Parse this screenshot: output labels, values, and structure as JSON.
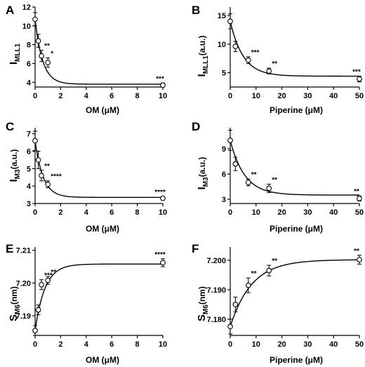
{
  "chart_data": [
    {
      "panel": "A",
      "type": "scatter",
      "ylabel_main": "I",
      "ylabel_sub": "MLL1",
      "ylabel_tail": "",
      "xlabel": "OM (μM)",
      "xlim": [
        0,
        10
      ],
      "ylim": [
        3.5,
        12
      ],
      "xticks": [
        0,
        2,
        4,
        6,
        8,
        10
      ],
      "yticks": [
        4,
        6,
        8,
        10,
        12
      ],
      "points": [
        {
          "x": 0,
          "y": 10.7,
          "err": 0.7,
          "sig": ""
        },
        {
          "x": 0.25,
          "y": 8.4,
          "err": 0.7,
          "sig": ""
        },
        {
          "x": 0.5,
          "y": 6.8,
          "err": 0.6,
          "sig": "**"
        },
        {
          "x": 1,
          "y": 6.1,
          "err": 0.5,
          "sig": "*"
        },
        {
          "x": 10,
          "y": 3.7,
          "err": 0.2,
          "sig": "***"
        }
      ],
      "fit": {
        "model": "decay",
        "y0": 10.7,
        "plateau": 3.8,
        "k": 1.7
      }
    },
    {
      "panel": "B",
      "type": "scatter",
      "ylabel_main": "I",
      "ylabel_sub": "MLL1",
      "ylabel_tail": "(a.u.)",
      "xlabel": "Piperine (μM)",
      "xlim": [
        0,
        50
      ],
      "ylim": [
        2.5,
        16.5
      ],
      "xticks": [
        0,
        10,
        20,
        30,
        40,
        50
      ],
      "yticks": [
        5,
        10,
        15
      ],
      "points": [
        {
          "x": 0,
          "y": 14.0,
          "err": 1.3,
          "sig": ""
        },
        {
          "x": 2,
          "y": 9.6,
          "err": 0.9,
          "sig": ""
        },
        {
          "x": 7,
          "y": 7.2,
          "err": 0.6,
          "sig": "***"
        },
        {
          "x": 15,
          "y": 5.3,
          "err": 0.5,
          "sig": "**"
        },
        {
          "x": 50,
          "y": 3.9,
          "err": 0.5,
          "sig": "***"
        }
      ],
      "fit": {
        "model": "decay",
        "y0": 14.0,
        "plateau": 4.4,
        "k": 0.2
      }
    },
    {
      "panel": "C",
      "type": "scatter",
      "ylabel_main": "I",
      "ylabel_sub": "M3",
      "ylabel_tail": "(a.u.)",
      "xlabel": "OM (μM)",
      "xlim": [
        0,
        10
      ],
      "ylim": [
        3,
        7.35
      ],
      "xticks": [
        0,
        2,
        4,
        6,
        8,
        10
      ],
      "yticks": [
        3,
        4,
        5,
        6,
        7
      ],
      "points": [
        {
          "x": 0,
          "y": 6.6,
          "err": 0.55,
          "sig": ""
        },
        {
          "x": 0.25,
          "y": 5.5,
          "err": 0.5,
          "sig": ""
        },
        {
          "x": 0.5,
          "y": 4.6,
          "err": 0.3,
          "sig": "**"
        },
        {
          "x": 1,
          "y": 4.1,
          "err": 0.2,
          "sig": "****"
        },
        {
          "x": 10,
          "y": 3.3,
          "err": 0.1,
          "sig": "****"
        }
      ],
      "fit": {
        "model": "decay",
        "y0": 6.6,
        "plateau": 3.35,
        "k": 1.6
      }
    },
    {
      "panel": "D",
      "type": "scatter",
      "ylabel_main": "I",
      "ylabel_sub": "M3",
      "ylabel_tail": "(a.u.)",
      "xlabel": "Piperine (μM)",
      "xlim": [
        0,
        50
      ],
      "ylim": [
        2.5,
        11.5
      ],
      "xticks": [
        0,
        10,
        20,
        30,
        40,
        50
      ],
      "yticks": [
        3,
        6,
        9
      ],
      "points": [
        {
          "x": 0,
          "y": 10.0,
          "err": 1.2,
          "sig": ""
        },
        {
          "x": 2,
          "y": 7.2,
          "err": 0.8,
          "sig": ""
        },
        {
          "x": 7,
          "y": 5.0,
          "err": 0.4,
          "sig": "**"
        },
        {
          "x": 15,
          "y": 4.3,
          "err": 0.5,
          "sig": "**"
        },
        {
          "x": 50,
          "y": 3.1,
          "err": 0.3,
          "sig": "**"
        }
      ],
      "fit": {
        "model": "decay",
        "y0": 10.0,
        "plateau": 3.5,
        "k": 0.18
      }
    },
    {
      "panel": "E",
      "type": "scatter",
      "ylabel_main": "S",
      "ylabel_sub": "M6",
      "ylabel_tail": "(nm)",
      "xlabel": "OM (μM)",
      "xlim": [
        0,
        10
      ],
      "ylim": [
        7.184,
        7.211
      ],
      "xticks": [
        0,
        2,
        4,
        6,
        8,
        10
      ],
      "yticks": [
        7.19,
        7.2,
        7.21
      ],
      "ytick_labels": [
        "7.19",
        "7.20",
        "7.21"
      ],
      "points": [
        {
          "x": 0,
          "y": 7.1855,
          "err": 0.0015,
          "sig": ""
        },
        {
          "x": 0.25,
          "y": 7.1918,
          "err": 0.0015,
          "sig": ""
        },
        {
          "x": 0.5,
          "y": 7.1995,
          "err": 0.0015,
          "sig": "***"
        },
        {
          "x": 1,
          "y": 7.2008,
          "err": 0.0012,
          "sig": "**"
        },
        {
          "x": 10,
          "y": 7.2062,
          "err": 0.0012,
          "sig": "****"
        }
      ],
      "fit": {
        "model": "rise",
        "y0": 7.1855,
        "plateau": 7.2058,
        "k": 1.3
      }
    },
    {
      "panel": "F",
      "type": "scatter",
      "ylabel_main": "S",
      "ylabel_sub": "M6",
      "ylabel_tail": "(nm)",
      "xlabel": "Piperine (μM)",
      "xlim": [
        0,
        50
      ],
      "ylim": [
        7.1745,
        7.2045
      ],
      "xticks": [
        0,
        10,
        20,
        30,
        40,
        50
      ],
      "yticks": [
        7.18,
        7.19,
        7.2
      ],
      "ytick_labels": [
        "7.180",
        "7.190",
        "7.200"
      ],
      "points": [
        {
          "x": 0,
          "y": 7.1775,
          "err": 0.0025,
          "sig": ""
        },
        {
          "x": 2,
          "y": 7.185,
          "err": 0.0025,
          "sig": ""
        },
        {
          "x": 7,
          "y": 7.1915,
          "err": 0.0025,
          "sig": "**"
        },
        {
          "x": 15,
          "y": 7.1965,
          "err": 0.0018,
          "sig": "**"
        },
        {
          "x": 50,
          "y": 7.2002,
          "err": 0.0015,
          "sig": "**"
        }
      ],
      "fit": {
        "model": "rise",
        "y0": 7.1775,
        "plateau": 7.2002,
        "k": 0.12
      }
    }
  ]
}
